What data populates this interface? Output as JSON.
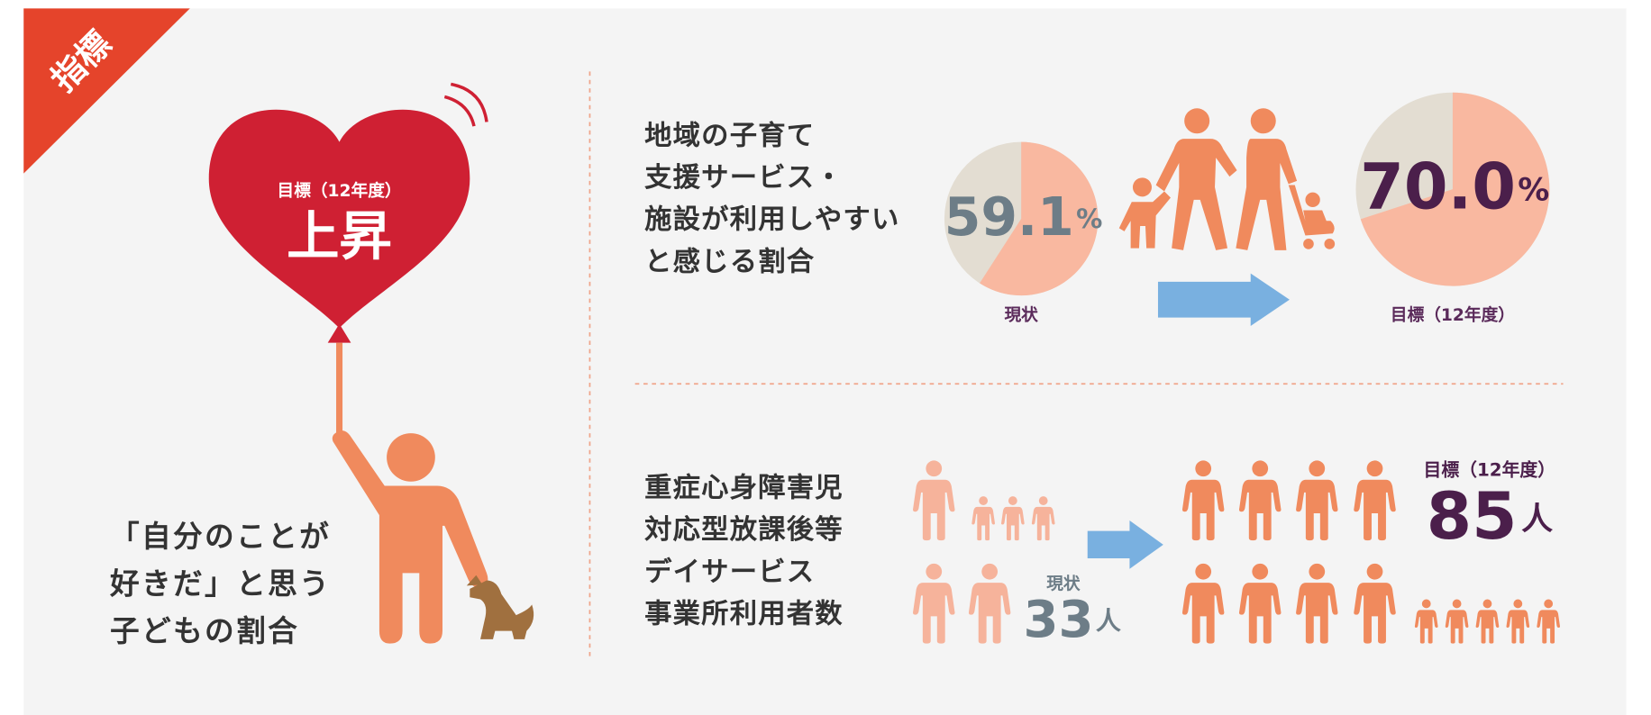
{
  "badge": "指標",
  "left": {
    "target_label": "目標（12年度）",
    "target_value": "上昇",
    "caption_lines": [
      "「自分のことが",
      "好きだ」と思う",
      "子どもの割合"
    ]
  },
  "indicator1": {
    "title_lines": [
      "地域の子育て",
      "支援サービス・",
      "施設が利用しやすい",
      "と感じる割合"
    ],
    "current": {
      "percent": 59.1,
      "unit": "%",
      "label": "現状"
    },
    "target": {
      "percent": {
        "value": 70.0,
        "label": "70.0"
      },
      "unit": "%",
      "label": "目標（12年度）"
    }
  },
  "indicator2": {
    "title_lines": [
      "重症心身障害児",
      "対応型放課後等",
      "デイサービス",
      "事業所利用者数"
    ],
    "current": {
      "count": 33,
      "unit": "人",
      "label": "現状"
    },
    "target": {
      "count": 85,
      "unit": "人",
      "label": "目標（12年度）"
    }
  }
}
